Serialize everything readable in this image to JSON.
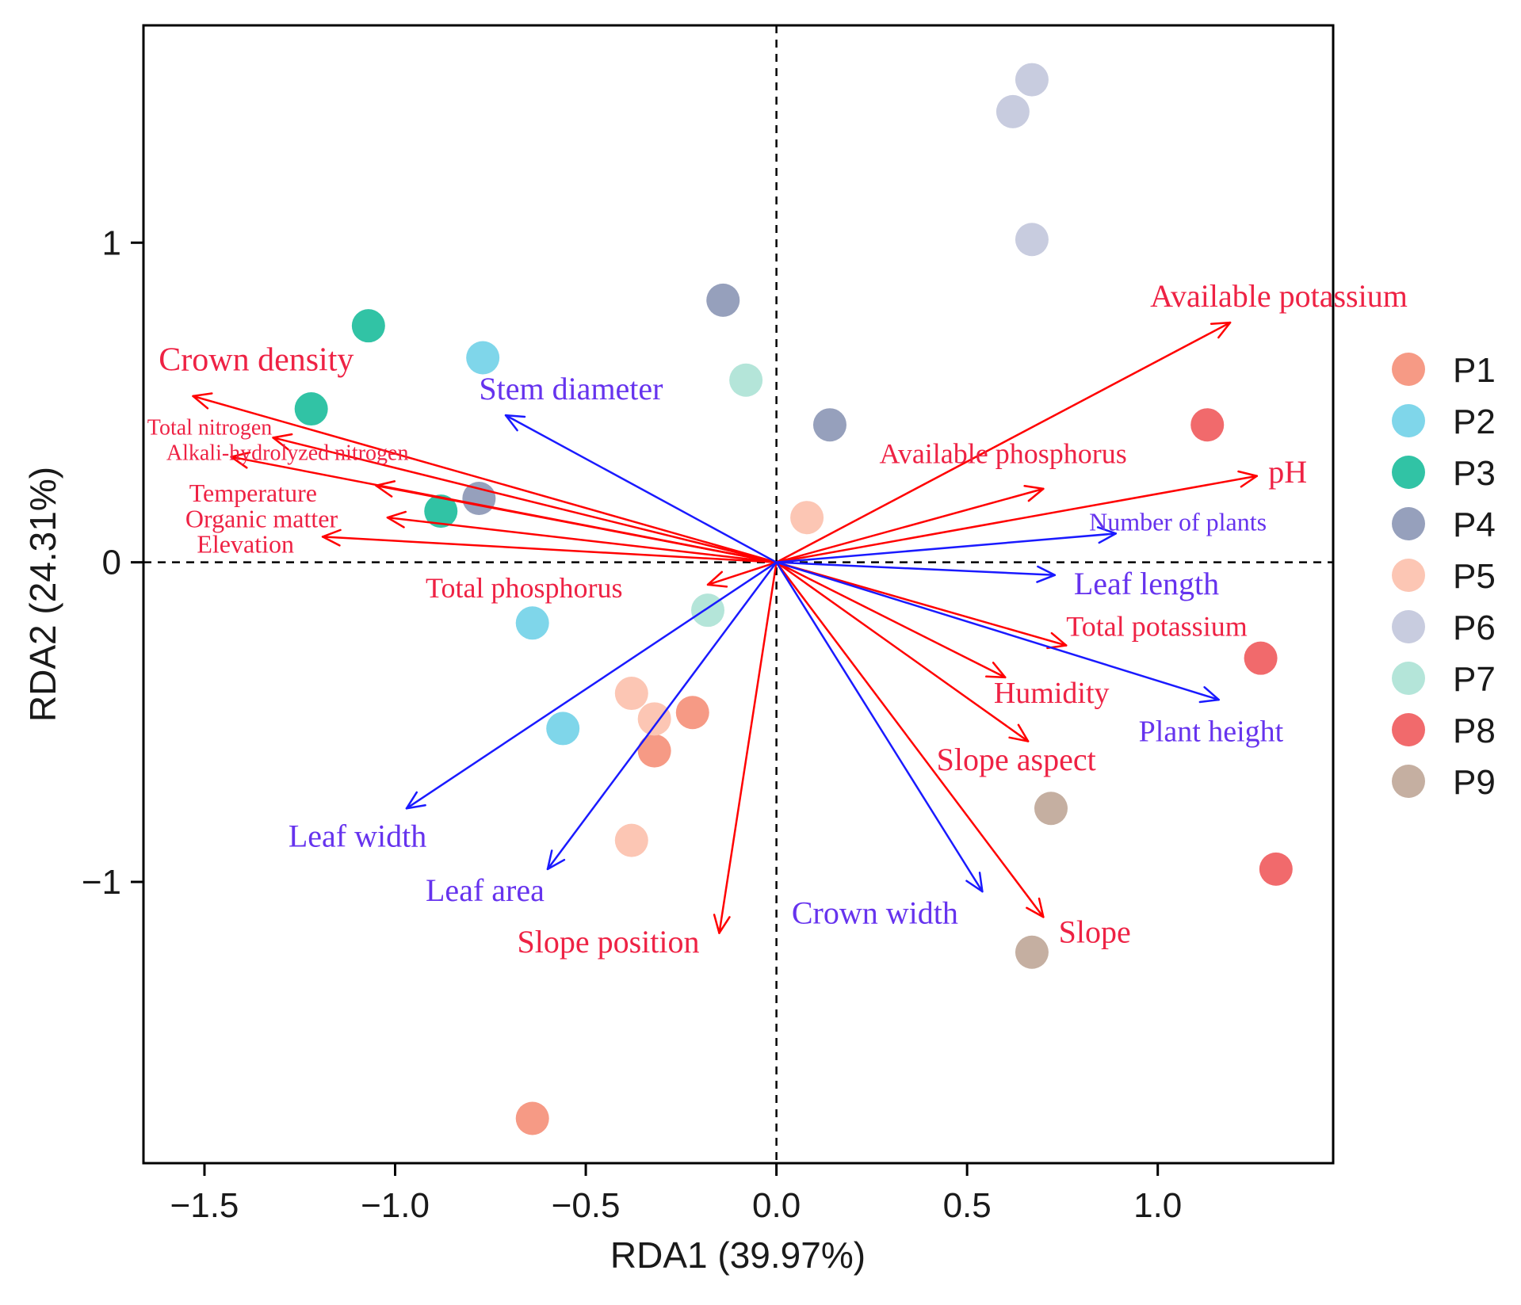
{
  "chart_data": {
    "type": "scatter",
    "subtype": "rda-biplot",
    "xlabel": "RDA1  (39.97%)",
    "ylabel": "RDA2  (24.31%)",
    "xlim": [
      -1.66,
      1.46
    ],
    "ylim": [
      -1.88,
      1.68
    ],
    "x_ticks": [
      -1.5,
      -1.0,
      -0.5,
      0.0,
      0.5,
      1.0
    ],
    "x_tick_labels": [
      "−1.5",
      "−1.0",
      "−0.5",
      "0.0",
      "0.5",
      "1.0"
    ],
    "y_ticks": [
      -1,
      0,
      1
    ],
    "y_tick_labels": [
      "−1",
      "0",
      "1"
    ],
    "legend_position": "right",
    "colors": {
      "environmental_arrow": "#ff0000",
      "environmental_label": "#ee2244",
      "trait_arrow": "#1a1aff",
      "trait_label": "#6633ee",
      "zero_lines": "#000000",
      "frame": "#000000"
    },
    "groups": [
      {
        "name": "P1",
        "color": "#f69a85"
      },
      {
        "name": "P2",
        "color": "#7fd6ea"
      },
      {
        "name": "P3",
        "color": "#31c3a5"
      },
      {
        "name": "P4",
        "color": "#96a0bc"
      },
      {
        "name": "P5",
        "color": "#fcc6b4"
      },
      {
        "name": "P6",
        "color": "#c8ccdf"
      },
      {
        "name": "P7",
        "color": "#b4e5d9"
      },
      {
        "name": "P8",
        "color": "#f16a6c"
      },
      {
        "name": "P9",
        "color": "#c5afa1"
      }
    ],
    "points": [
      {
        "group": "P1",
        "x": -0.64,
        "y": -1.74
      },
      {
        "group": "P1",
        "x": -0.22,
        "y": -0.47
      },
      {
        "group": "P1",
        "x": -0.32,
        "y": -0.59
      },
      {
        "group": "P2",
        "x": -0.77,
        "y": 0.64
      },
      {
        "group": "P2",
        "x": -0.64,
        "y": -0.19
      },
      {
        "group": "P2",
        "x": -0.56,
        "y": -0.52
      },
      {
        "group": "P3",
        "x": -1.07,
        "y": 0.74
      },
      {
        "group": "P3",
        "x": -1.22,
        "y": 0.48
      },
      {
        "group": "P3",
        "x": -0.88,
        "y": 0.16
      },
      {
        "group": "P4",
        "x": -0.14,
        "y": 0.82
      },
      {
        "group": "P4",
        "x": 0.14,
        "y": 0.43
      },
      {
        "group": "P4",
        "x": -0.78,
        "y": 0.2
      },
      {
        "group": "P5",
        "x": 0.08,
        "y": 0.14
      },
      {
        "group": "P5",
        "x": -0.38,
        "y": -0.41
      },
      {
        "group": "P5",
        "x": -0.32,
        "y": -0.49
      },
      {
        "group": "P5",
        "x": -0.38,
        "y": -0.87
      },
      {
        "group": "P6",
        "x": 0.67,
        "y": 1.51
      },
      {
        "group": "P6",
        "x": 0.62,
        "y": 1.41
      },
      {
        "group": "P6",
        "x": 0.67,
        "y": 1.01
      },
      {
        "group": "P7",
        "x": -0.08,
        "y": 0.57
      },
      {
        "group": "P7",
        "x": -0.18,
        "y": -0.15
      },
      {
        "group": "P8",
        "x": 1.13,
        "y": 0.43
      },
      {
        "group": "P8",
        "x": 1.27,
        "y": -0.3
      },
      {
        "group": "P8",
        "x": 1.31,
        "y": -0.96
      },
      {
        "group": "P9",
        "x": 0.72,
        "y": -0.77
      },
      {
        "group": "P9",
        "x": 0.67,
        "y": -1.22
      }
    ],
    "arrows": [
      {
        "label": "Available potassium",
        "kind": "environmental",
        "x": 1.19,
        "y": 0.75,
        "label_x": 0.98,
        "label_y": 0.8,
        "label_size": 40
      },
      {
        "label": "pH",
        "kind": "environmental",
        "x": 1.26,
        "y": 0.27,
        "label_x": 1.29,
        "label_y": 0.25,
        "label_size": 40
      },
      {
        "label": "Available phosphorus",
        "kind": "environmental",
        "x": 0.7,
        "y": 0.23,
        "label_x": 0.27,
        "label_y": 0.31,
        "label_size": 36
      },
      {
        "label": "Total potassium",
        "kind": "environmental",
        "x": 0.76,
        "y": -0.26,
        "label_x": 0.76,
        "label_y": -0.23,
        "label_size": 36
      },
      {
        "label": "Humidity",
        "kind": "environmental",
        "x": 0.6,
        "y": -0.36,
        "label_x": 0.57,
        "label_y": -0.44,
        "label_size": 38
      },
      {
        "label": "Slope aspect",
        "kind": "environmental",
        "x": 0.66,
        "y": -0.56,
        "label_x": 0.42,
        "label_y": -0.65,
        "label_size": 40
      },
      {
        "label": "Slope",
        "kind": "environmental",
        "x": 0.7,
        "y": -1.11,
        "label_x": 0.74,
        "label_y": -1.19,
        "label_size": 40
      },
      {
        "label": "Slope position",
        "kind": "environmental",
        "x": -0.15,
        "y": -1.16,
        "label_x": -0.68,
        "label_y": -1.22,
        "label_size": 40
      },
      {
        "label": "Total phosphorus",
        "kind": "environmental",
        "x": -0.18,
        "y": -0.07,
        "label_x": -0.92,
        "label_y": -0.11,
        "label_size": 36
      },
      {
        "label": "Elevation",
        "kind": "environmental",
        "x": -1.19,
        "y": 0.08,
        "label_x": -1.52,
        "label_y": 0.03,
        "label_size": 32
      },
      {
        "label": "Organic matter",
        "kind": "environmental",
        "x": -1.02,
        "y": 0.14,
        "label_x": -1.55,
        "label_y": 0.11,
        "label_size": 32
      },
      {
        "label": "Temperature",
        "kind": "environmental",
        "x": -1.05,
        "y": 0.24,
        "label_x": -1.54,
        "label_y": 0.19,
        "label_size": 32
      },
      {
        "label": "Alkali-hydrolyzed nitrogen",
        "kind": "environmental",
        "x": -1.43,
        "y": 0.33,
        "label_x": -1.6,
        "label_y": 0.32,
        "label_size": 28
      },
      {
        "label": "Total nitrogen",
        "kind": "environmental",
        "x": -1.32,
        "y": 0.39,
        "label_x": -1.65,
        "label_y": 0.4,
        "label_size": 28
      },
      {
        "label": "Crown density",
        "kind": "environmental",
        "x": -1.53,
        "y": 0.52,
        "label_x": -1.62,
        "label_y": 0.6,
        "label_size": 42
      },
      {
        "label": "Stem diameter",
        "kind": "trait",
        "x": -0.71,
        "y": 0.46,
        "label_x": -0.78,
        "label_y": 0.51,
        "label_size": 40
      },
      {
        "label": "Number of plants",
        "kind": "trait",
        "x": 0.89,
        "y": 0.09,
        "label_x": 0.82,
        "label_y": 0.1,
        "label_size": 32
      },
      {
        "label": "Leaf length",
        "kind": "trait",
        "x": 0.73,
        "y": -0.04,
        "label_x": 0.78,
        "label_y": -0.1,
        "label_size": 40
      },
      {
        "label": "Plant height",
        "kind": "trait",
        "x": 1.16,
        "y": -0.43,
        "label_x": 0.95,
        "label_y": -0.56,
        "label_size": 38
      },
      {
        "label": "Crown width",
        "kind": "trait",
        "x": 0.54,
        "y": -1.03,
        "label_x": 0.04,
        "label_y": -1.13,
        "label_size": 40
      },
      {
        "label": "Leaf width",
        "kind": "trait",
        "x": -0.97,
        "y": -0.77,
        "label_x": -1.28,
        "label_y": -0.89,
        "label_size": 40
      },
      {
        "label": "Leaf area",
        "kind": "trait",
        "x": -0.6,
        "y": -0.96,
        "label_x": -0.92,
        "label_y": -1.06,
        "label_size": 40
      }
    ]
  }
}
